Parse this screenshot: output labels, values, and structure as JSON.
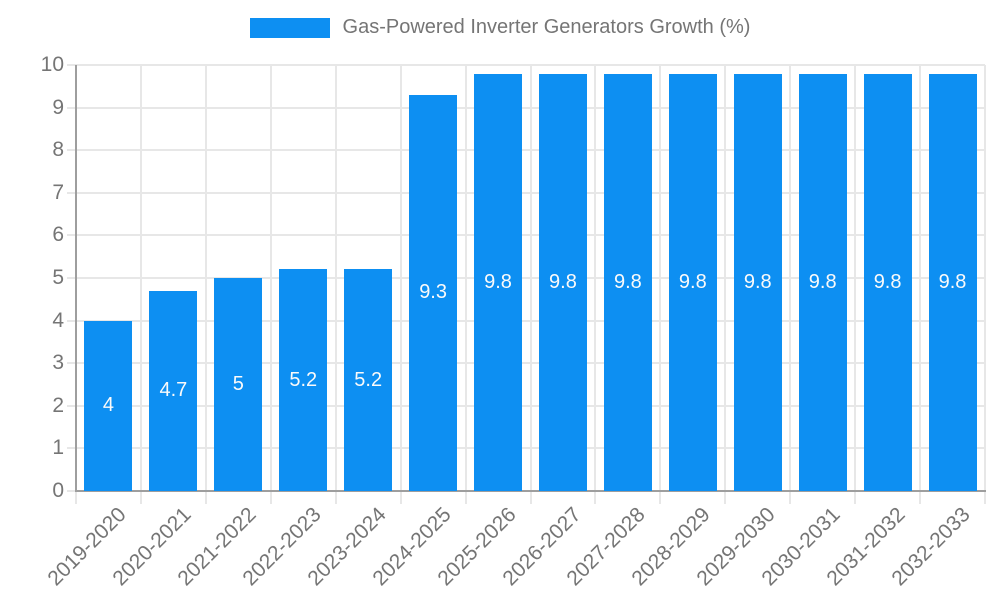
{
  "legend": {
    "label": "Gas-Powered Inverter Generators Growth (%)"
  },
  "chart_data": {
    "type": "bar",
    "title": "Gas-Powered Inverter Generators Growth (%)",
    "categories": [
      "2019-2020",
      "2020-2021",
      "2021-2022",
      "2022-2023",
      "2023-2024",
      "2024-2025",
      "2025-2026",
      "2026-2027",
      "2027-2028",
      "2028-2029",
      "2029-2030",
      "2030-2031",
      "2031-2032",
      "2032-2033"
    ],
    "values": [
      4,
      4.7,
      5,
      5.2,
      5.2,
      9.3,
      9.8,
      9.8,
      9.8,
      9.8,
      9.8,
      9.8,
      9.8,
      9.8
    ],
    "xlabel": "",
    "ylabel": "",
    "ylim": [
      0,
      10
    ],
    "yticks": [
      0,
      1,
      2,
      3,
      4,
      5,
      6,
      7,
      8,
      9,
      10
    ],
    "grid": true,
    "legend_position": "top-center",
    "bar_labels_inside": true,
    "colors": {
      "bar": "#0d8ff2",
      "grid": "#e7e7e7",
      "axis": "#9e9e9e",
      "tick_text": "#757575",
      "bar_label_text": "#fafafa",
      "background": "#ffffff"
    }
  }
}
